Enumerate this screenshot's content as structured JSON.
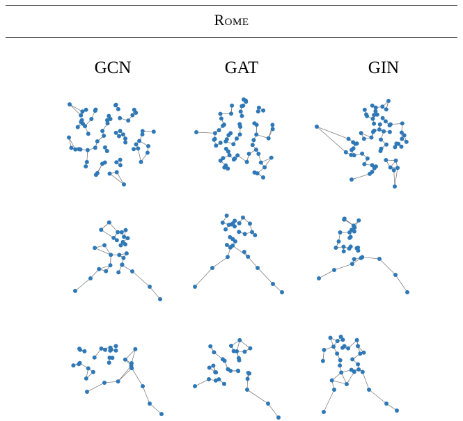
{
  "dataset": "Rome",
  "columns": [
    "GCN",
    "GAT",
    "GIN"
  ],
  "colors": {
    "node": "#2e78b7",
    "edge": "#7f7f7f",
    "rule": "#000000"
  },
  "grid": {
    "rows": 3,
    "cols": 3,
    "content": "node-link graph drawings (one per model and sample graph)"
  }
}
